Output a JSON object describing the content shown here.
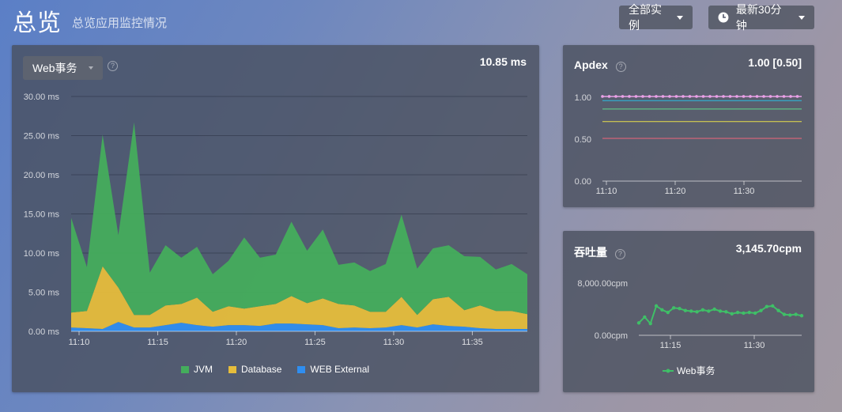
{
  "header": {
    "title": "总览",
    "subtitle": "总览应用监控情况"
  },
  "toolbar": {
    "instances_label": "全部实例",
    "time_range_label": "最新30分钟"
  },
  "web_panel": {
    "selector": "Web事务",
    "value": "10.85 ms",
    "colors": {
      "jvm": "#44ad5c",
      "database": "#e6bd3b",
      "web_external": "#2f8ef0"
    },
    "chart_data": {
      "type": "area",
      "stacked": true,
      "ylim": [
        0,
        30
      ],
      "yticks": [
        "0.00 ms",
        "5.00 ms",
        "10.00 ms",
        "15.00 ms",
        "20.00 ms",
        "25.00 ms",
        "30.00 ms"
      ],
      "xticks": [
        "11:10",
        "11:15",
        "11:20",
        "11:25",
        "11:30",
        "11:35"
      ],
      "x": [
        0,
        1,
        2,
        3,
        4,
        5,
        6,
        7,
        8,
        9,
        10,
        11,
        12,
        13,
        14,
        15,
        16,
        17,
        18,
        19,
        20,
        21,
        22,
        23,
        24,
        25,
        26,
        27,
        28,
        29
      ],
      "series": [
        {
          "name": "WEB External",
          "values": [
            0.5,
            0.4,
            0.3,
            1.2,
            0.5,
            0.5,
            0.8,
            1.1,
            0.8,
            0.6,
            0.8,
            0.8,
            0.7,
            1.0,
            1.0,
            0.9,
            0.8,
            0.4,
            0.5,
            0.4,
            0.5,
            0.8,
            0.5,
            0.9,
            0.7,
            0.6,
            0.4,
            0.3,
            0.3,
            0.3
          ]
        },
        {
          "name": "Database",
          "values": [
            1.9,
            2.2,
            8.0,
            4.4,
            1.6,
            1.6,
            2.5,
            2.4,
            3.5,
            1.9,
            2.4,
            2.1,
            2.5,
            2.5,
            3.5,
            2.7,
            3.4,
            3.1,
            2.8,
            2.1,
            2.0,
            3.6,
            1.6,
            3.2,
            3.7,
            2.1,
            2.9,
            2.3,
            2.3,
            1.9
          ]
        },
        {
          "name": "JVM",
          "values": [
            12.1,
            5.6,
            16.8,
            6.7,
            24.6,
            5.4,
            7.7,
            5.9,
            6.5,
            4.8,
            5.8,
            9.1,
            6.2,
            6.3,
            9.5,
            6.7,
            8.8,
            5.0,
            5.5,
            5.2,
            6.1,
            10.5,
            5.9,
            6.5,
            6.6,
            6.9,
            6.2,
            5.3,
            6.0,
            5.1
          ]
        }
      ],
      "legend": [
        "JVM",
        "Database",
        "WEB External"
      ]
    }
  },
  "apdex_panel": {
    "title": "Apdex",
    "value": "1.00 [0.50]",
    "chart_data": {
      "type": "line",
      "ylim": [
        0,
        1.1
      ],
      "yticks": [
        "0.00",
        "0.50",
        "1.00"
      ],
      "xticks": [
        "11:10",
        "11:20",
        "11:30"
      ],
      "series": [
        {
          "color": "#e9a0e6",
          "level": 1.01,
          "dotted": true
        },
        {
          "color": "#2bbbe0",
          "level": 0.96
        },
        {
          "color": "#62d88c",
          "level": 0.86
        },
        {
          "color": "#e7df4a",
          "level": 0.71
        },
        {
          "color": "#f0657a",
          "level": 0.51
        }
      ]
    }
  },
  "throughput_panel": {
    "title": "吞吐量",
    "value": "3,145.70cpm",
    "chart_data": {
      "type": "line",
      "ylim": [
        0,
        8000
      ],
      "yticks": [
        "0.00cpm",
        "8,000.00cpm"
      ],
      "xticks": [
        "11:15",
        "11:30"
      ],
      "series": [
        {
          "name": "Web事务",
          "color": "#3fbf67",
          "values": [
            1900,
            2800,
            1800,
            4500,
            3900,
            3500,
            4200,
            4100,
            3800,
            3700,
            3600,
            3900,
            3700,
            4000,
            3700,
            3600,
            3300,
            3500,
            3400,
            3500,
            3400,
            3800,
            4400,
            4500,
            3800,
            3200,
            3100,
            3200,
            3000
          ]
        }
      ],
      "legend": [
        "Web事务"
      ]
    }
  }
}
